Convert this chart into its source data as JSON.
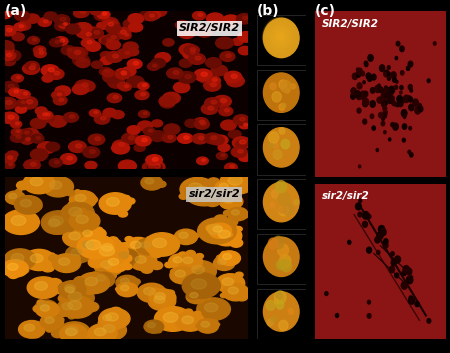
{
  "panel_labels": [
    "(a)",
    "(b)",
    "(c)"
  ],
  "panel_a_labels": [
    "SIR2/SIR2",
    "sir2/sir2"
  ],
  "panel_c_labels": [
    "SIR2/SIR2",
    "sir2/sir2"
  ],
  "figsize": [
    4.5,
    3.53
  ],
  "dpi": 100
}
